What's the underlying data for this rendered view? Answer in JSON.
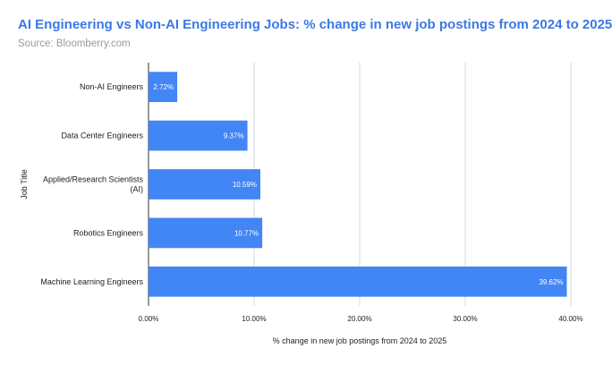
{
  "title": "AI Engineering vs Non-AI Engineering Jobs: % change in new job postings from 2024 to 2025",
  "subtitle": "Source: Bloomberry.com",
  "colors": {
    "bar": "#4285f4",
    "title": "#3b78e7",
    "grid": "#d9d9d9",
    "axis": "#333333"
  },
  "chart_data": {
    "type": "bar",
    "orientation": "horizontal",
    "title": "AI Engineering vs Non-AI Engineering Jobs: % change in new job postings from 2024 to 2025",
    "subtitle": "Source: Bloomberry.com",
    "xlabel": "% change in new job postings from 2024 to 2025",
    "ylabel": "Job Title",
    "xlim": [
      0,
      40
    ],
    "xticks": [
      0,
      10,
      20,
      30,
      40
    ],
    "xtick_labels": [
      "0.00%",
      "10.00%",
      "20.00%",
      "30.00%",
      "40.00%"
    ],
    "grid": true,
    "legend": "none",
    "categories": [
      [
        "Non-AI Engineers"
      ],
      [
        "Data Center Engineers"
      ],
      [
        "Applied/Research Scientists",
        "(AI)"
      ],
      [
        "Robotics Engineers"
      ],
      [
        "Machine Learning Engineers"
      ]
    ],
    "values": [
      2.72,
      9.37,
      10.59,
      10.77,
      39.62
    ],
    "value_labels": [
      "2.72%",
      "9.37%",
      "10.59%",
      "10.77%",
      "39.62%"
    ]
  }
}
